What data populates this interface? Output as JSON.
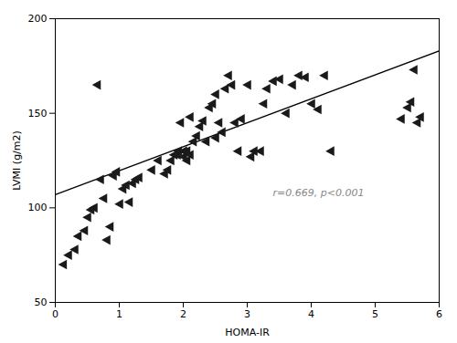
{
  "chart_data": {
    "type": "scatter",
    "xlabel": "HOMA-IR",
    "ylabel": "LVMI (g/m2)",
    "xlim": [
      0,
      6
    ],
    "ylim": [
      50,
      200
    ],
    "xticks": [
      0,
      1,
      2,
      3,
      4,
      5,
      6
    ],
    "yticks": [
      50,
      100,
      150,
      200
    ],
    "grid": false,
    "marker": "triangle-left",
    "color": "#1a1a1a",
    "x": [
      0.12,
      0.2,
      0.3,
      0.35,
      0.45,
      0.5,
      0.55,
      0.6,
      0.65,
      0.7,
      0.75,
      0.8,
      0.85,
      0.9,
      0.95,
      1.0,
      1.05,
      1.1,
      1.15,
      1.2,
      1.25,
      1.3,
      1.5,
      1.6,
      1.7,
      1.75,
      1.8,
      1.85,
      1.9,
      1.92,
      1.95,
      2.0,
      2.0,
      2.05,
      2.05,
      2.1,
      2.1,
      2.15,
      2.2,
      2.25,
      2.3,
      2.35,
      2.4,
      2.45,
      2.5,
      2.5,
      2.55,
      2.6,
      2.65,
      2.7,
      2.75,
      2.8,
      2.85,
      2.9,
      3.0,
      3.05,
      3.1,
      3.2,
      3.25,
      3.3,
      3.4,
      3.5,
      3.6,
      3.7,
      3.8,
      3.9,
      4.0,
      4.1,
      4.2,
      4.3,
      5.4,
      5.5,
      5.55,
      5.6,
      5.65,
      5.7
    ],
    "values": [
      70,
      75,
      78,
      85,
      88,
      95,
      99,
      100,
      165,
      115,
      105,
      83,
      90,
      117,
      119,
      102,
      110,
      112,
      103,
      113,
      115,
      116,
      120,
      125,
      118,
      120,
      125,
      128,
      128,
      130,
      145,
      127,
      130,
      125,
      130,
      128,
      148,
      135,
      138,
      143,
      146,
      135,
      153,
      155,
      160,
      137,
      145,
      140,
      163,
      170,
      165,
      145,
      130,
      147,
      165,
      127,
      130,
      130,
      155,
      163,
      167,
      168,
      150,
      165,
      170,
      169,
      155,
      152,
      170,
      130,
      147,
      153,
      156,
      173,
      145,
      148
    ],
    "regression": {
      "x": [
        0,
        6
      ],
      "y": [
        107,
        183
      ],
      "color": "#000000"
    },
    "annotations": [
      {
        "text": "r=0.669, p<0.001",
        "x": 3.4,
        "y": 108,
        "color": "#888888"
      }
    ]
  }
}
